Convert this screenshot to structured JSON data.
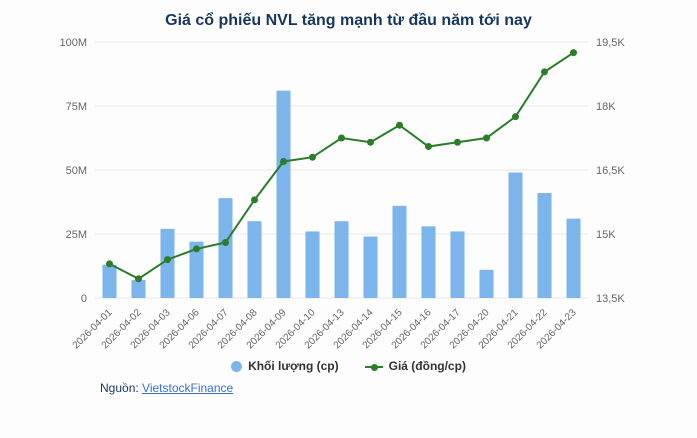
{
  "header": {
    "title": "Giá cổ phiếu NVL tăng mạnh từ đầu năm tới nay"
  },
  "source": {
    "label": "Nguồn:",
    "link_text": "VietstockFinance"
  },
  "colors": {
    "bar": "#7cb5ec",
    "line": "#2b7d2b",
    "grid": "#e6e6e6",
    "axis_text": "#666666",
    "title": "#17365d",
    "link": "#3a6fd8"
  },
  "chart_data": {
    "type": "combo",
    "title": "Giá cổ phiếu NVL tăng mạnh từ đầu năm tới nay",
    "categories": [
      "2026-04-01",
      "2026-04-02",
      "2026-04-03",
      "2026-04-06",
      "2026-04-07",
      "2026-04-08",
      "2026-04-09",
      "2026-04-10",
      "2026-04-13",
      "2026-04-14",
      "2026-04-15",
      "2026-04-16",
      "2026-04-17",
      "2026-04-20",
      "2026-04-21",
      "2026-04-22",
      "2026-04-23"
    ],
    "series": [
      {
        "name": "Khối lượng (cp)",
        "type": "bar",
        "axis": "left",
        "color": "#7cb5ec",
        "values": [
          13000000,
          7000000,
          27000000,
          22000000,
          39000000,
          30000000,
          81000000,
          26000000,
          30000000,
          24000000,
          36000000,
          28000000,
          26000000,
          11000000,
          49000000,
          41000000,
          31000000
        ]
      },
      {
        "name": "Giá (đồng/cp)",
        "type": "line",
        "axis": "right",
        "color": "#2b7d2b",
        "values": [
          14300,
          13950,
          14400,
          14650,
          14800,
          15800,
          16700,
          16800,
          17250,
          17150,
          17550,
          17050,
          17150,
          17250,
          17750,
          18800,
          19250
        ]
      }
    ],
    "left_axis": {
      "min": 0,
      "max": 100000000,
      "tick_labels": [
        "0",
        "25M",
        "50M",
        "75M",
        "100M"
      ]
    },
    "right_axis": {
      "min": 13500,
      "max": 19500,
      "tick_labels": [
        "13,5K",
        "15K",
        "16,5K",
        "18K",
        "19,5K"
      ]
    },
    "grid": true,
    "legend_position": "bottom"
  }
}
